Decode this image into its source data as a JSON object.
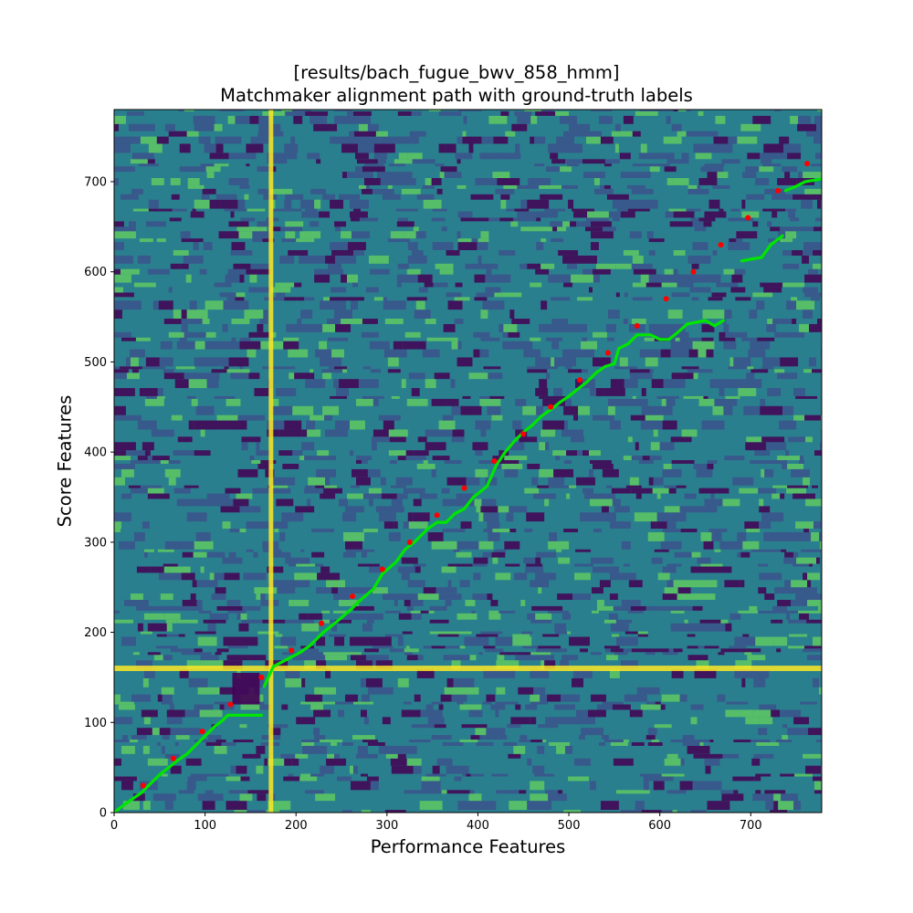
{
  "chart_data": {
    "type": "heatmap",
    "title": [
      "[results/bach_fugue_bwv_858_hmm]",
      "Matchmaker alignment path with ground-truth labels"
    ],
    "xlabel": "Performance Features",
    "ylabel": "Score Features",
    "xlim": [
      0,
      778
    ],
    "ylim": [
      0,
      780
    ],
    "xticks": [
      0,
      100,
      200,
      300,
      400,
      500,
      600,
      700
    ],
    "yticks": [
      0,
      100,
      200,
      300,
      400,
      500,
      600,
      700
    ],
    "colormap": [
      "#440154",
      "#3b528b",
      "#21918c",
      "#5ec962",
      "#fde725"
    ],
    "path_color": "#00e600",
    "label_color": "#ff0000",
    "alignment_path": [
      [
        0,
        0
      ],
      [
        10,
        8
      ],
      [
        20,
        15
      ],
      [
        30,
        22
      ],
      [
        40,
        32
      ],
      [
        50,
        42
      ],
      [
        60,
        50
      ],
      [
        70,
        58
      ],
      [
        80,
        65
      ],
      [
        90,
        75
      ],
      [
        100,
        85
      ],
      [
        110,
        95
      ],
      [
        120,
        103
      ],
      [
        125,
        108
      ],
      [
        140,
        108
      ],
      [
        162,
        108
      ],
      [
        165,
        140
      ],
      [
        175,
        162
      ],
      [
        190,
        170
      ],
      [
        205,
        178
      ],
      [
        215,
        185
      ],
      [
        230,
        200
      ],
      [
        245,
        212
      ],
      [
        260,
        225
      ],
      [
        270,
        235
      ],
      [
        285,
        248
      ],
      [
        295,
        265
      ],
      [
        310,
        278
      ],
      [
        320,
        292
      ],
      [
        330,
        300
      ],
      [
        345,
        315
      ],
      [
        355,
        322
      ],
      [
        365,
        322
      ],
      [
        375,
        332
      ],
      [
        385,
        337
      ],
      [
        395,
        350
      ],
      [
        410,
        362
      ],
      [
        420,
        385
      ],
      [
        430,
        400
      ],
      [
        440,
        412
      ],
      [
        450,
        422
      ],
      [
        460,
        430
      ],
      [
        470,
        440
      ],
      [
        480,
        447
      ],
      [
        490,
        455
      ],
      [
        500,
        462
      ],
      [
        510,
        470
      ],
      [
        520,
        478
      ],
      [
        530,
        488
      ],
      [
        540,
        495
      ],
      [
        550,
        498
      ],
      [
        555,
        515
      ],
      [
        565,
        520
      ],
      [
        575,
        530
      ],
      [
        590,
        530
      ],
      [
        600,
        525
      ],
      [
        610,
        525
      ],
      [
        620,
        533
      ],
      [
        630,
        542
      ],
      [
        650,
        546
      ],
      [
        660,
        540
      ],
      [
        670,
        546
      ],
      [
        690,
        612
      ],
      [
        700,
        614
      ],
      [
        712,
        616
      ],
      [
        722,
        630
      ],
      [
        735,
        640
      ],
      [
        738,
        690
      ],
      [
        748,
        694
      ],
      [
        760,
        700
      ],
      [
        778,
        703
      ]
    ],
    "ground_truth_labels": [
      [
        32,
        30
      ],
      [
        65,
        60
      ],
      [
        97,
        90
      ],
      [
        128,
        120
      ],
      [
        162,
        150
      ],
      [
        195,
        180
      ],
      [
        228,
        210
      ],
      [
        262,
        240
      ],
      [
        295,
        270
      ],
      [
        325,
        300
      ],
      [
        355,
        330
      ],
      [
        385,
        360
      ],
      [
        418,
        390
      ],
      [
        450,
        420
      ],
      [
        480,
        450
      ],
      [
        512,
        480
      ],
      [
        543,
        510
      ],
      [
        575,
        540
      ],
      [
        607,
        570
      ],
      [
        637,
        600
      ],
      [
        667,
        630
      ],
      [
        697,
        660
      ],
      [
        730,
        690
      ],
      [
        762,
        720
      ]
    ]
  }
}
